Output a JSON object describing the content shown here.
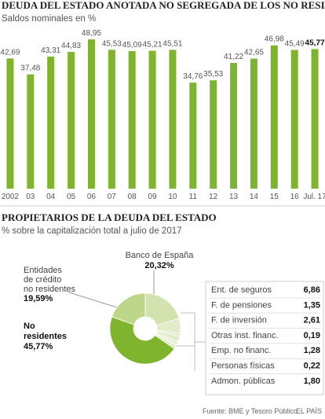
{
  "chart_data": [
    {
      "type": "bar",
      "title": "DEUDA DEL ESTADO ANOTADA NO SEGREGADA DE LOS NO RESIDENTES",
      "subtitle": "Saldos nominales en %",
      "categories": [
        "2002",
        "03",
        "04",
        "05",
        "06",
        "07",
        "08",
        "09",
        "10",
        "11",
        "12",
        "13",
        "14",
        "15",
        "16",
        "Jul. 17"
      ],
      "values": [
        42.69,
        37.48,
        43.31,
        44.83,
        48.95,
        45.53,
        45.09,
        45.21,
        45.51,
        34.76,
        35.53,
        41.22,
        42.65,
        46.98,
        45.49,
        45.77
      ],
      "value_labels": [
        "42,69",
        "37,48",
        "43,31",
        "44,83",
        "48,95",
        "45,53",
        "45,09",
        "45,21",
        "45,51",
        "34,76",
        "35,53",
        "41,22",
        "42,65",
        "46,98",
        "45,49",
        "45,77"
      ],
      "color": "#7fb52e",
      "ylim": [
        0,
        50
      ]
    },
    {
      "type": "pie",
      "title": "PROPIETARIOS DE LA DEUDA DEL ESTADO",
      "subtitle": "% sobre la capitalización total a julio de 2017",
      "categories": [
        "Banco de España",
        "Ent. de seguros",
        "F. de pensiones",
        "F. de inversión",
        "Otras inst. financ.",
        "Emp. no financ.",
        "Personas físicas",
        "Admon. públicas",
        "No\nresidentes",
        "Entidades\nde crédito\nno residentes"
      ],
      "values": [
        20.32,
        6.86,
        1.35,
        2.61,
        0.19,
        1.28,
        0.22,
        1.8,
        45.77,
        19.59
      ],
      "value_labels": [
        "20,32%",
        "6,86",
        "1,35",
        "2,61",
        "0,19",
        "1,28",
        "0,22",
        "1,80",
        "45,77%",
        "19,59%"
      ],
      "colors": [
        "#d3e3ae",
        "#e3ecca",
        "#e3ecca",
        "#e3ecca",
        "#e3ecca",
        "#e3ecca",
        "#e3ecca",
        "#e3ecca",
        "#7fb52e",
        "#bdd78a"
      ]
    }
  ],
  "source": "Fuente: BME y Tesoro Público.",
  "publisher": "EL PAÍS"
}
